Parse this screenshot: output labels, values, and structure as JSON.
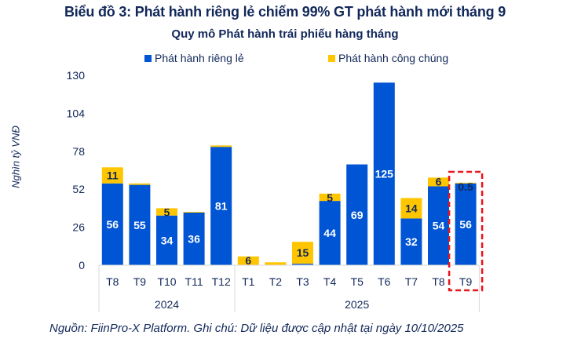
{
  "header": {
    "title": "Biểu đồ 3: Phát hành riêng lẻ chiếm 99% GT phát hành mới tháng 9"
  },
  "footer": {
    "source": "Nguồn: FiinPro-X Platform. Ghi chú: Dữ liệu được cập nhật tại ngày 10/10/2025"
  },
  "colors": {
    "private": "#0055d4",
    "public": "#ffc600",
    "text": "#12285a",
    "highlight": "#e8141b",
    "axis": "#d9d9d9"
  },
  "chart_data": {
    "type": "bar",
    "stacked": true,
    "title": "Quy mô Phát hành trái phiếu hàng tháng",
    "xlabel": "",
    "ylabel": "Nghìn tỷ VNĐ",
    "ylim": [
      0,
      130
    ],
    "yticks": [
      0,
      26,
      52,
      78,
      104,
      130
    ],
    "grid": false,
    "legend_position": "top",
    "categories": [
      "T8",
      "T9",
      "T10",
      "T11",
      "T12",
      "T1",
      "T2",
      "T3",
      "T4",
      "T5",
      "T6",
      "T7",
      "T8",
      "T9"
    ],
    "groups": [
      {
        "label": "2024",
        "count": 5
      },
      {
        "label": "2025",
        "count": 9
      }
    ],
    "series": [
      {
        "name": "Phát hành riêng lẻ",
        "key": "private",
        "values": [
          56,
          55,
          34,
          36,
          81,
          0,
          0,
          1,
          44,
          69,
          125,
          32,
          54,
          56
        ],
        "labels": [
          "56",
          "55",
          "34",
          "36",
          "81",
          "",
          "",
          "",
          "44",
          "69",
          "125",
          "32",
          "54",
          "56"
        ]
      },
      {
        "name": "Phát hành công chúng",
        "key": "public",
        "values": [
          11,
          1,
          5,
          0.5,
          1,
          6,
          2,
          15,
          5,
          0,
          0,
          14,
          6,
          0.5
        ],
        "labels": [
          "11",
          "",
          "5",
          "",
          "",
          "6",
          "",
          "15",
          "5",
          "",
          "",
          "14",
          "6",
          "0.5"
        ]
      }
    ],
    "highlight_category_index": 13
  }
}
